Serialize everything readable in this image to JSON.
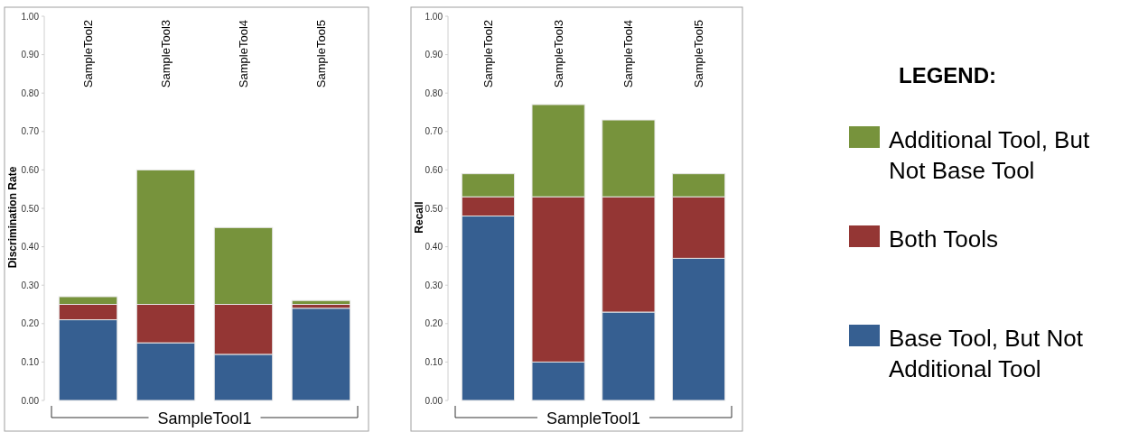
{
  "chart_data": [
    {
      "type": "bar",
      "stacked": true,
      "ylabel": "Discrimination Rate",
      "categories": [
        "SampleTool2",
        "SampleTool3",
        "SampleTool4",
        "SampleTool5"
      ],
      "series": [
        {
          "color": "#365f91",
          "values": [
            0.21,
            0.15,
            0.12,
            0.24
          ]
        },
        {
          "color": "#943634",
          "values": [
            0.04,
            0.1,
            0.13,
            0.01
          ]
        },
        {
          "color": "#77933c",
          "values": [
            0.02,
            0.35,
            0.2,
            0.01
          ]
        }
      ],
      "ylim": [
        0,
        1
      ],
      "yticks": [
        {
          "value": 0,
          "label": "0.00"
        },
        {
          "value": 0.1,
          "label": "0.10"
        },
        {
          "value": 0.2,
          "label": "0.20"
        },
        {
          "value": 0.3,
          "label": "0.30"
        },
        {
          "value": 0.4,
          "label": "0.40"
        },
        {
          "value": 0.5,
          "label": "0.50"
        },
        {
          "value": 0.6,
          "label": "0.60"
        },
        {
          "value": 0.7,
          "label": "0.70"
        },
        {
          "value": 0.8,
          "label": "0.80"
        },
        {
          "value": 0.9,
          "label": "0.90"
        },
        {
          "value": 1,
          "label": "1.00"
        }
      ],
      "annotations": [
        "SampleTool1"
      ],
      "legend": false
    },
    {
      "type": "bar",
      "stacked": true,
      "ylabel": "Recall",
      "categories": [
        "SampleTool2",
        "SampleTool3",
        "SampleTool4",
        "SampleTool5"
      ],
      "legend_title": "LEGEND:",
      "series": [
        {
          "name": "Base Tool, But Not Additional Tool",
          "color": "#365f91",
          "values": [
            0.48,
            0.1,
            0.23,
            0.37
          ]
        },
        {
          "name": "Both Tools",
          "color": "#943634",
          "values": [
            0.05,
            0.43,
            0.3,
            0.16
          ]
        },
        {
          "name": "Additional Tool, But Not Base Tool",
          "color": "#77933c",
          "values": [
            0.06,
            0.24,
            0.2,
            0.06
          ]
        }
      ],
      "ylim": [
        0,
        1
      ],
      "yticks": [
        {
          "value": 0,
          "label": "0.00"
        },
        {
          "value": 0.1,
          "label": "0.10"
        },
        {
          "value": 0.2,
          "label": "0.20"
        },
        {
          "value": 0.3,
          "label": "0.30"
        },
        {
          "value": 0.4,
          "label": "0.40"
        },
        {
          "value": 0.5,
          "label": "0.50"
        },
        {
          "value": 0.6,
          "label": "0.60"
        },
        {
          "value": 0.7,
          "label": "0.70"
        },
        {
          "value": 0.8,
          "label": "0.80"
        },
        {
          "value": 0.9,
          "label": "0.90"
        },
        {
          "value": 1,
          "label": "1.00"
        }
      ],
      "annotations": [
        "SampleTool1"
      ],
      "legend": "right"
    }
  ]
}
